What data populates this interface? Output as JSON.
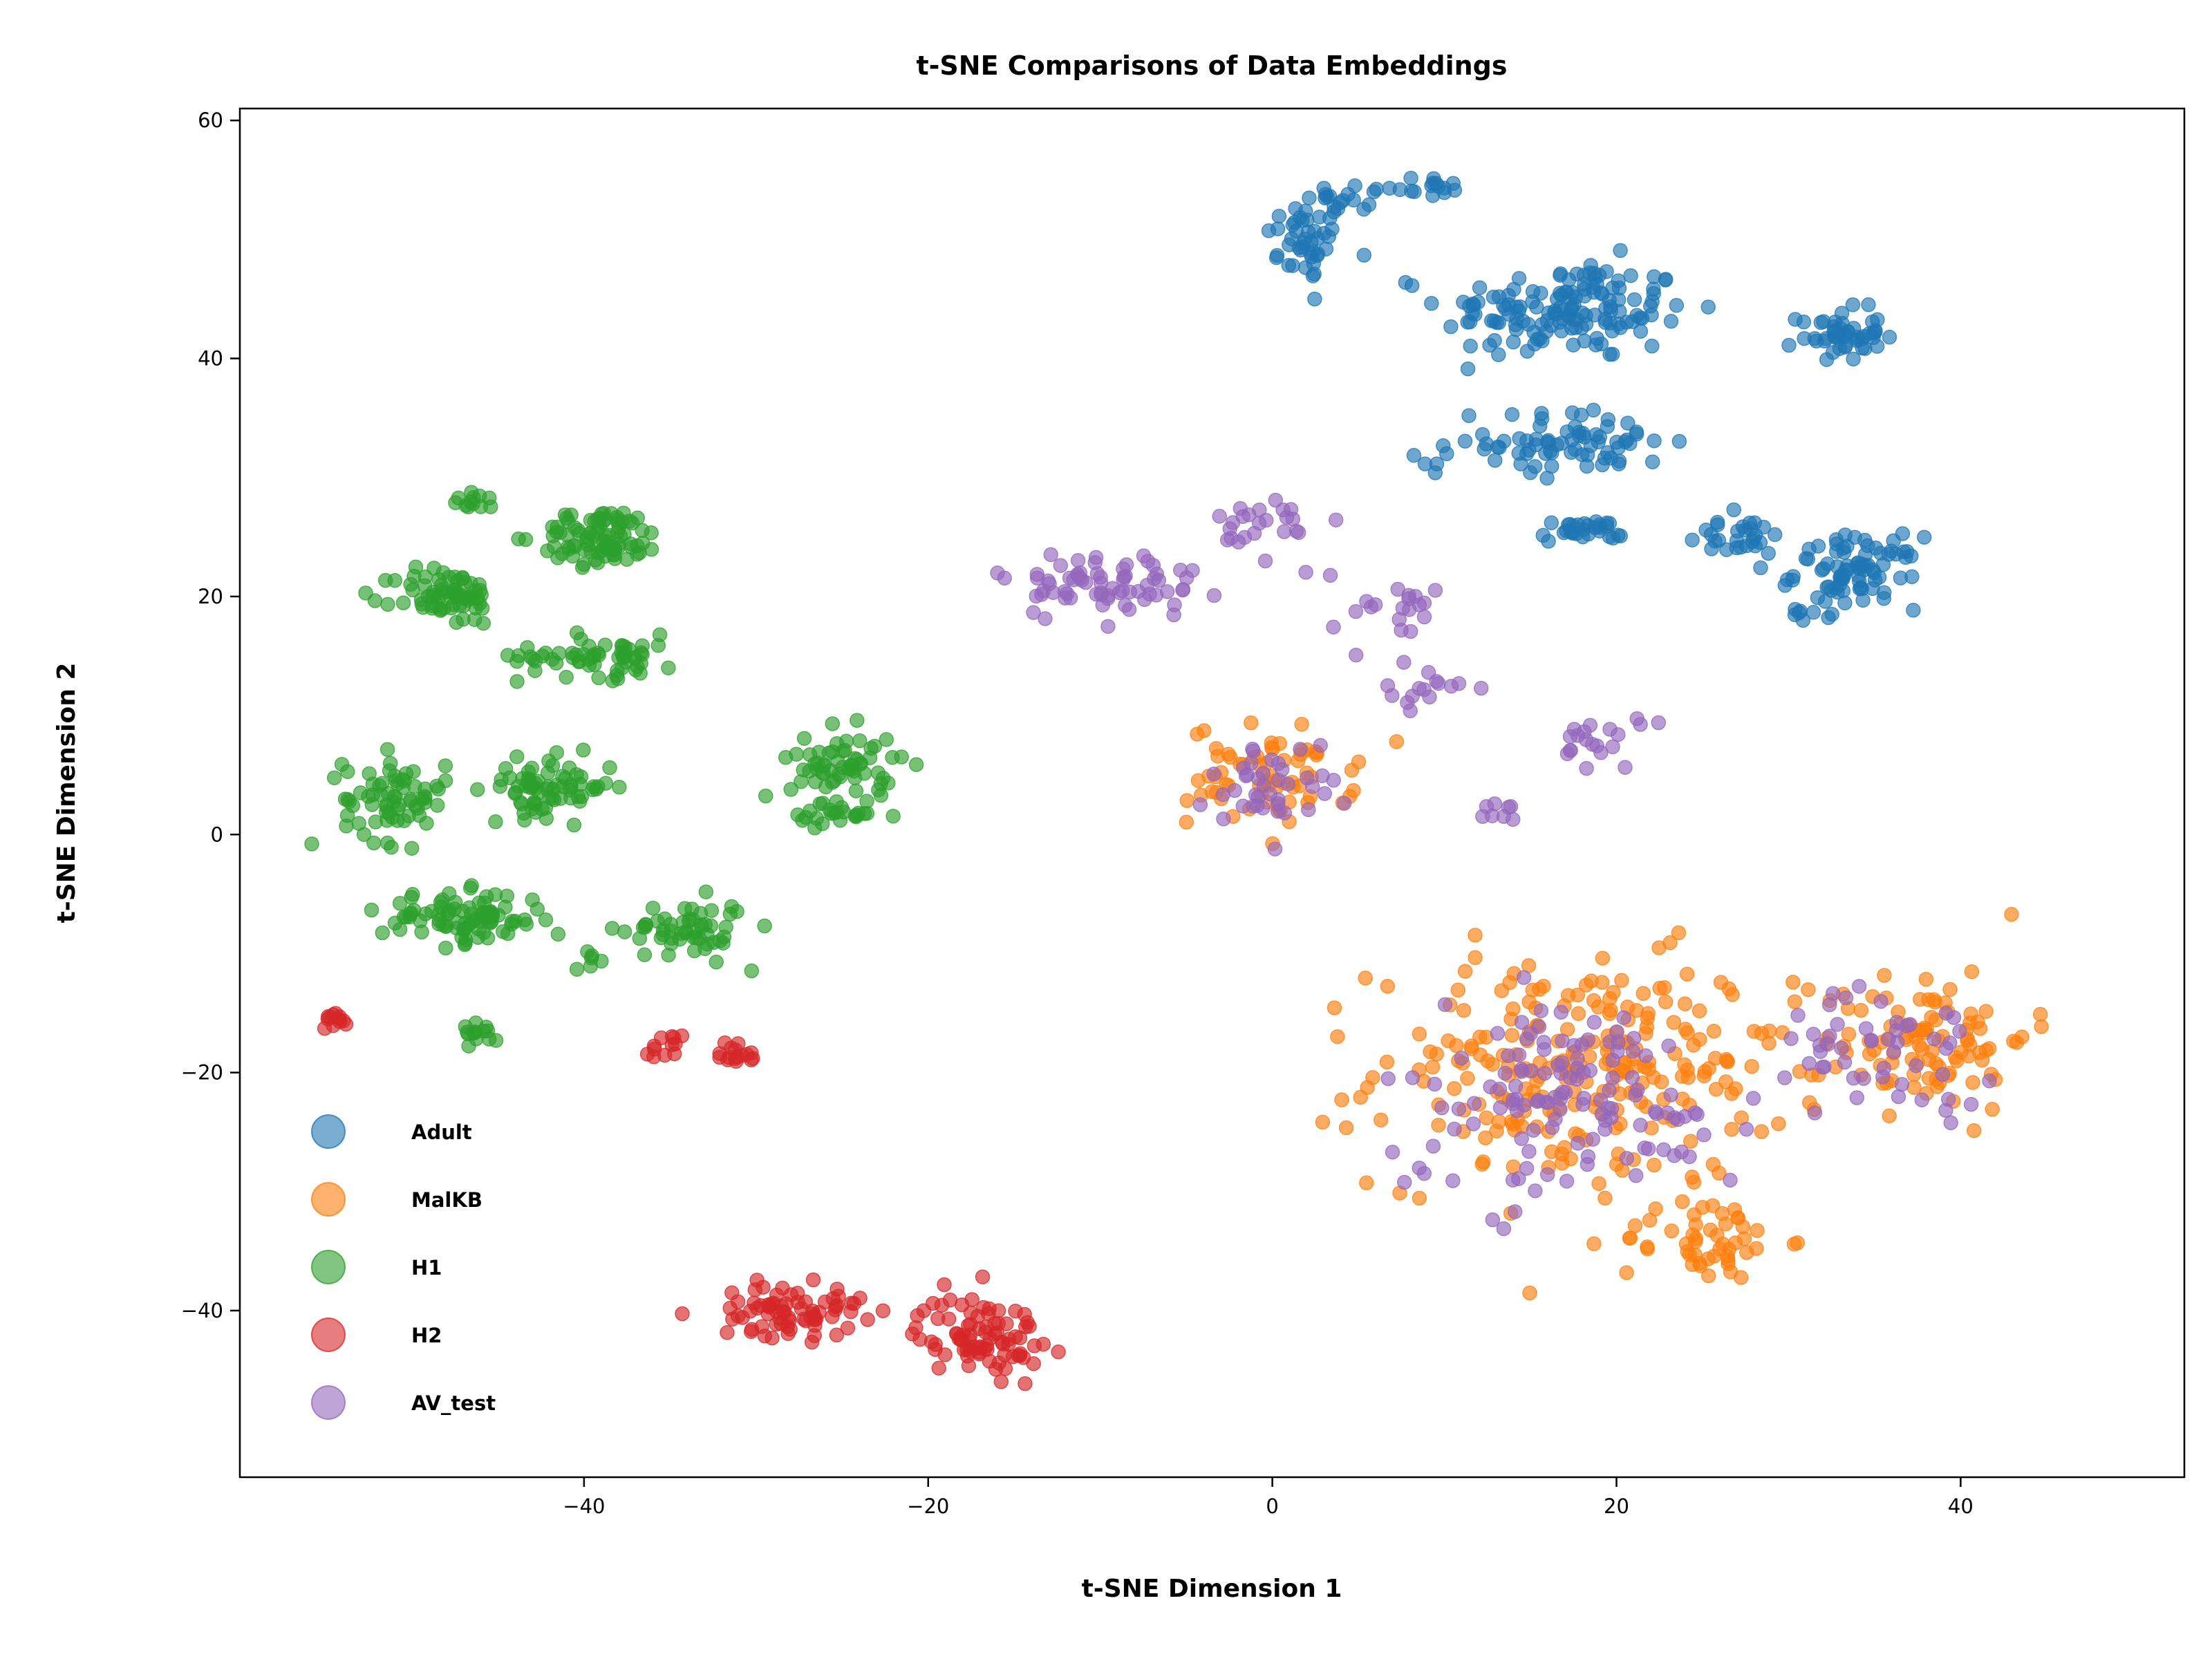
{
  "chart_data": {
    "type": "scatter",
    "title": "t-SNE Comparisons of Data Embeddings",
    "xlabel": "t-SNE Dimension 1",
    "ylabel": "t-SNE Dimension 2",
    "xlim": [
      -60,
      53
    ],
    "ylim": [
      -54,
      61
    ],
    "xticks": [
      -40,
      -20,
      0,
      20,
      40
    ],
    "yticks": [
      -40,
      -20,
      0,
      20,
      40,
      60
    ],
    "xtick_labels": [
      "−40",
      "−20",
      "0",
      "20",
      "40"
    ],
    "ytick_labels": [
      "−40",
      "−20",
      "0",
      "20",
      "40",
      "60"
    ],
    "grid": false,
    "legend_position": "lower-left",
    "series": [
      {
        "name": "Adult",
        "color": "#1f77b4",
        "clusters": [
          {
            "center": [
              2,
              50
            ],
            "spread": [
              2,
              3
            ],
            "count": 45
          },
          {
            "center": [
              5,
              53.5
            ],
            "spread": [
              2.5,
              1
            ],
            "count": 15
          },
          {
            "center": [
              9,
              54.5
            ],
            "spread": [
              2,
              0.8
            ],
            "count": 15
          },
          {
            "center": [
              17,
              44
            ],
            "spread": [
              6,
              3.5
            ],
            "count": 150
          },
          {
            "center": [
              33,
              42
            ],
            "spread": [
              2,
              1.8
            ],
            "count": 50
          },
          {
            "center": [
              18,
              33
            ],
            "spread": [
              4.5,
              2.2
            ],
            "count": 70
          },
          {
            "center": [
              9,
              31.5
            ],
            "spread": [
              0.8,
              1
            ],
            "count": 6
          },
          {
            "center": [
              18,
              25.5
            ],
            "spread": [
              2,
              0.8
            ],
            "count": 30
          },
          {
            "center": [
              27,
              25
            ],
            "spread": [
              2.5,
              1.5
            ],
            "count": 30
          },
          {
            "center": [
              34,
              22
            ],
            "spread": [
              3,
              2.5
            ],
            "count": 80
          },
          {
            "center": [
              31,
              18.5
            ],
            "spread": [
              1,
              0.5
            ],
            "count": 6
          }
        ]
      },
      {
        "name": "MalKB",
        "color": "#ff7f0e",
        "clusters": [
          {
            "center": [
              0,
              5
            ],
            "spread": [
              4,
              3.5
            ],
            "count": 70
          },
          {
            "center": [
              18,
              -20
            ],
            "spread": [
              10,
              8
            ],
            "count": 260
          },
          {
            "center": [
              38,
              -17
            ],
            "spread": [
              5,
              5
            ],
            "count": 100
          },
          {
            "center": [
              25,
              -34
            ],
            "spread": [
              4,
              3
            ],
            "count": 50
          }
        ]
      },
      {
        "name": "H1",
        "color": "#2ca02c",
        "clusters": [
          {
            "center": [
              -48,
              20
            ],
            "spread": [
              2.5,
              2
            ],
            "count": 70
          },
          {
            "center": [
              -46,
              28
            ],
            "spread": [
              1.5,
              0.6
            ],
            "count": 12
          },
          {
            "center": [
              -39,
              25
            ],
            "spread": [
              3,
              2
            ],
            "count": 90
          },
          {
            "center": [
              -39,
              15
            ],
            "spread": [
              4,
              1.5
            ],
            "count": 60
          },
          {
            "center": [
              -51,
              3
            ],
            "spread": [
              2.5,
              3
            ],
            "count": 70
          },
          {
            "center": [
              -42,
              4
            ],
            "spread": [
              3,
              2
            ],
            "count": 70
          },
          {
            "center": [
              -47,
              -7
            ],
            "spread": [
              4,
              1.8
            ],
            "count": 90
          },
          {
            "center": [
              -34,
              -8
            ],
            "spread": [
              3,
              2
            ],
            "count": 55
          },
          {
            "center": [
              -25,
              6
            ],
            "spread": [
              2.5,
              2.5
            ],
            "count": 60
          },
          {
            "center": [
              -25,
              1.5
            ],
            "spread": [
              2.5,
              1.2
            ],
            "count": 25
          },
          {
            "center": [
              -46,
              -16.5
            ],
            "spread": [
              1,
              0.8
            ],
            "count": 14
          },
          {
            "center": [
              -39.5,
              -10.5
            ],
            "spread": [
              1.5,
              0.8
            ],
            "count": 6
          }
        ]
      },
      {
        "name": "H2",
        "color": "#d62728",
        "clusters": [
          {
            "center": [
              -54.5,
              -15.5
            ],
            "spread": [
              0.6,
              0.6
            ],
            "count": 12
          },
          {
            "center": [
              -35.5,
              -18
            ],
            "spread": [
              1.2,
              1
            ],
            "count": 12
          },
          {
            "center": [
              -31,
              -18.5
            ],
            "spread": [
              1,
              1.2
            ],
            "count": 16
          },
          {
            "center": [
              -28,
              -40
            ],
            "spread": [
              3.5,
              1.8
            ],
            "count": 75
          },
          {
            "center": [
              -17,
              -42
            ],
            "spread": [
              3,
              2.8
            ],
            "count": 85
          }
        ]
      },
      {
        "name": "AV_test",
        "color": "#9467bd",
        "clusters": [
          {
            "center": [
              -10,
              21
            ],
            "spread": [
              5,
              2.5
            ],
            "count": 70
          },
          {
            "center": [
              0,
              26
            ],
            "spread": [
              2.5,
              2.5
            ],
            "count": 25
          },
          {
            "center": [
              7,
              19
            ],
            "spread": [
              3,
              2.5
            ],
            "count": 20
          },
          {
            "center": [
              9,
              12
            ],
            "spread": [
              2,
              1.5
            ],
            "count": 15
          },
          {
            "center": [
              19,
              8
            ],
            "spread": [
              2,
              2
            ],
            "count": 20
          },
          {
            "center": [
              13,
              2
            ],
            "spread": [
              1,
              1
            ],
            "count": 8
          },
          {
            "center": [
              0,
              4
            ],
            "spread": [
              3,
              3
            ],
            "count": 40
          },
          {
            "center": [
              17,
              -22
            ],
            "spread": [
              9,
              7
            ],
            "count": 130
          },
          {
            "center": [
              36,
              -18
            ],
            "spread": [
              5,
              4
            ],
            "count": 50
          }
        ]
      }
    ]
  }
}
